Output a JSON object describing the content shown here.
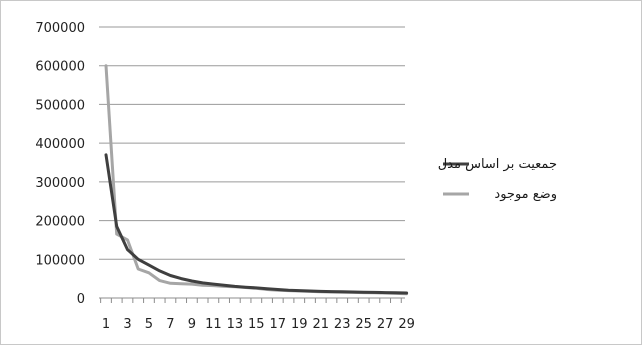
{
  "chart_data": {
    "type": "line",
    "x": [
      1,
      2,
      3,
      4,
      5,
      6,
      7,
      8,
      9,
      10,
      11,
      12,
      13,
      14,
      15,
      16,
      17,
      18,
      19,
      20,
      21,
      22,
      23,
      24,
      25,
      26,
      27,
      28,
      29
    ],
    "x_tick_labels": [
      "1",
      "3",
      "5",
      "7",
      "9",
      "11",
      "13",
      "15",
      "17",
      "19",
      "21",
      "23",
      "25",
      "27",
      "29"
    ],
    "ylim": [
      0,
      700000
    ],
    "y_ticks": [
      0,
      100000,
      200000,
      300000,
      400000,
      500000,
      600000,
      700000
    ],
    "y_tick_labels": [
      "0",
      "100000",
      "200000",
      "300000",
      "400000",
      "500000",
      "600000",
      "700000"
    ],
    "grid": true,
    "legend_position": "right",
    "series": [
      {
        "name": "جمعیت بر اساس مدل",
        "color": "#3f3f3f",
        "values": [
          370000,
          185000,
          125000,
          100000,
          85000,
          70000,
          58000,
          50000,
          44000,
          39000,
          36000,
          33000,
          30000,
          28000,
          26000,
          24000,
          22000,
          20000,
          19000,
          18000,
          17000,
          16500,
          16000,
          15500,
          15000,
          14500,
          14000,
          13500,
          13000
        ]
      },
      {
        "name": "وضع موجود",
        "color": "#a6a6a6",
        "values": [
          600000,
          165000,
          150000,
          75000,
          65000,
          45000,
          38000,
          37000,
          36000,
          33000,
          32000,
          30000,
          29000,
          27000,
          25000,
          22000,
          20000,
          19000,
          18000,
          17000,
          16000,
          15500,
          15000,
          14500,
          14000,
          13500,
          13000,
          12000,
          11000
        ]
      }
    ]
  }
}
